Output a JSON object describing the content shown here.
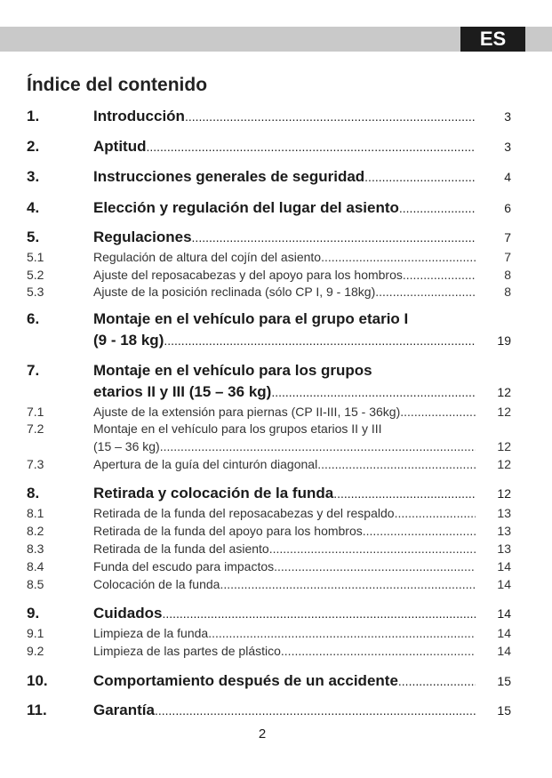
{
  "header": {
    "language": "ES",
    "accent": "#c9c9c9"
  },
  "title": "Índice del contenido",
  "entries": [
    {
      "num": "1.",
      "lines": [
        "Introducción"
      ],
      "page": "3",
      "level": "main"
    },
    {
      "num": "2.",
      "lines": [
        "Aptitud"
      ],
      "page": "3",
      "level": "main"
    },
    {
      "num": "3.",
      "lines": [
        "Instrucciones generales de seguridad"
      ],
      "page": "4",
      "level": "main"
    },
    {
      "num": "4.",
      "lines": [
        "Elección y regulación del lugar del asiento"
      ],
      "page": "6",
      "level": "main"
    },
    {
      "num": "5.",
      "lines": [
        "Regulaciones"
      ],
      "page": "7",
      "level": "main"
    },
    {
      "num": "5.1",
      "lines": [
        "Regulación de altura del cojín del asiento"
      ],
      "page": "7",
      "level": "sub"
    },
    {
      "num": "5.2",
      "lines": [
        "Ajuste del reposacabezas y del apoyo para los hombros"
      ],
      "page": "8",
      "level": "sub"
    },
    {
      "num": "5.3",
      "lines": [
        "Ajuste de la posición reclinada (sólo CP I, 9 - 18kg)"
      ],
      "page": "8",
      "level": "sub"
    },
    {
      "num": "6.",
      "lines": [
        "Montaje en el vehículo para el grupo etario I",
        "(9 - 18 kg)"
      ],
      "page": "19",
      "level": "main"
    },
    {
      "num": "7.",
      "lines": [
        "Montaje en el vehículo para los grupos",
        "etarios II y III (15 – 36 kg)"
      ],
      "page": "12",
      "level": "main"
    },
    {
      "num": "7.1",
      "lines": [
        "Ajuste de la extensión para piernas (CP II-III, 15 - 36kg)"
      ],
      "page": "12",
      "level": "sub"
    },
    {
      "num": "7.2",
      "lines": [
        "Montaje en el vehículo para los grupos etarios II y III",
        "(15 – 36 kg)"
      ],
      "page": "12",
      "level": "sub"
    },
    {
      "num": "7.3",
      "lines": [
        "Apertura de la guía del cinturón diagonal"
      ],
      "page": "12",
      "level": "sub"
    },
    {
      "num": "8.",
      "lines": [
        "Retirada y colocación de la funda"
      ],
      "page": "12",
      "level": "main"
    },
    {
      "num": "8.1",
      "lines": [
        "Retirada de la funda del reposacabezas y del respaldo"
      ],
      "page": "13",
      "level": "sub"
    },
    {
      "num": "8.2",
      "lines": [
        "Retirada de la funda del apoyo para los hombros"
      ],
      "page": "13",
      "level": "sub"
    },
    {
      "num": "8.3",
      "lines": [
        "Retirada de la funda del asiento"
      ],
      "page": "13",
      "level": "sub"
    },
    {
      "num": "8.4",
      "lines": [
        "Funda del escudo para impactos"
      ],
      "page": "14",
      "level": "sub"
    },
    {
      "num": "8.5",
      "lines": [
        "Colocación de la funda"
      ],
      "page": "14",
      "level": "sub"
    },
    {
      "num": "9.",
      "lines": [
        "Cuidados"
      ],
      "page": "14",
      "level": "main"
    },
    {
      "num": "9.1",
      "lines": [
        "Limpieza de la funda"
      ],
      "page": "14",
      "level": "sub"
    },
    {
      "num": "9.2",
      "lines": [
        "Limpieza de las partes de plástico"
      ],
      "page": "14",
      "level": "sub"
    },
    {
      "num": "10.",
      "lines": [
        "Comportamiento después de un accidente"
      ],
      "page": "15",
      "level": "main"
    },
    {
      "num": "11.",
      "lines": [
        "Garantía"
      ],
      "page": "15",
      "level": "main"
    }
  ],
  "page_number": "2"
}
